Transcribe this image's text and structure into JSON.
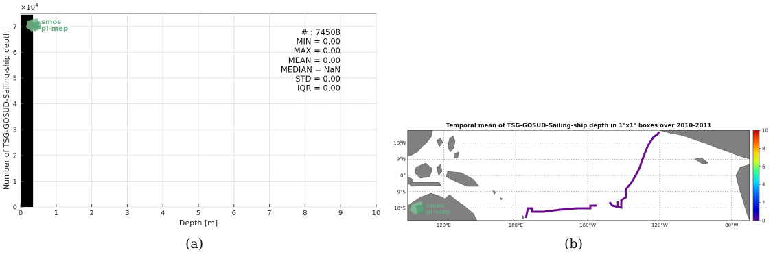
{
  "chart_data": [
    {
      "type": "bar",
      "panel_label": "(a)",
      "xlabel": "Depth [m]",
      "ylabel": "Number of TSG-GOSUD-Sailing-ship depth",
      "y_multiplier": "×10",
      "y_multiplier_exp": "4",
      "xlim": [
        0,
        10
      ],
      "ylim": [
        0,
        75000
      ],
      "xticks": [
        "0",
        "1",
        "2",
        "3",
        "4",
        "5",
        "6",
        "7",
        "8",
        "9",
        "10"
      ],
      "yticks": [
        "0",
        "1",
        "2",
        "3",
        "4",
        "5",
        "6",
        "7"
      ],
      "grid": true,
      "bars": [
        {
          "x_start": 0.0,
          "x_end": 0.35,
          "value": 74508
        }
      ],
      "bar_color": "#000000",
      "stats": [
        "# : 74508",
        "MIN = 0.00",
        "MAX =  0.00",
        "MEAN = 0.00",
        "MEDIAN = NaN",
        "STD = 0.00",
        "IQR = 0.00"
      ],
      "logo": [
        "smos",
        "pi-mep"
      ]
    },
    {
      "type": "heatmap",
      "panel_label": "(b)",
      "title": "Temporal mean of TSG-GOSUD-Sailing-ship depth in 1°x1° boxes over 2010-2011",
      "lon_range": [
        100,
        -70
      ],
      "lat_range": [
        -25,
        25
      ],
      "xticks": [
        "120°E",
        "160°E",
        "160°W",
        "120°W",
        "80°W"
      ],
      "yticks": [
        "18°N",
        "9°N",
        "0°",
        "9°S",
        "18°S"
      ],
      "colorbar": {
        "min": 0,
        "max": 10,
        "ticks": [
          "10",
          "8",
          "6",
          "4",
          "2",
          "0"
        ]
      },
      "track_value": 0,
      "track_color": "#6a0a8c",
      "land_color": "#808080",
      "logo": [
        "smos",
        "pi-mep"
      ]
    }
  ]
}
